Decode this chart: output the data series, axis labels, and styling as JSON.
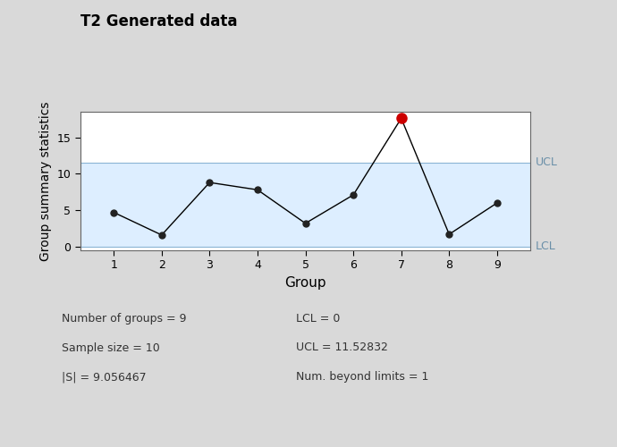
{
  "title": "T2 Generated data",
  "xlabel": "Group",
  "ylabel": "Group summary statistics",
  "groups": [
    1,
    2,
    3,
    4,
    5,
    6,
    7,
    8,
    9
  ],
  "values": [
    4.7,
    1.6,
    8.8,
    7.8,
    3.2,
    7.1,
    17.6,
    1.7,
    6.0
  ],
  "UCL": 11.52832,
  "LCL": 0,
  "beyond_index": 6,
  "normal_color": "#000000",
  "beyond_color": "#cc0000",
  "line_color": "#000000",
  "ucl_label": "UCL",
  "lcl_label": "LCL",
  "stats": [
    "Number of groups = 9",
    "Sample size = 10",
    "|S| = 9.056467"
  ],
  "stats2": [
    "LCL = 0",
    "UCL = 11.52832",
    "Num. beyond limits = 1"
  ],
  "background_color": "#d9d9d9",
  "plot_bg_color": "#ffffff",
  "shaded_region_color": "#ddeeff",
  "ylim": [
    -0.5,
    18.5
  ],
  "yticks": [
    0,
    5,
    10,
    15
  ],
  "title_fontsize": 12,
  "label_fontsize": 10,
  "tick_fontsize": 9,
  "stats_fontsize": 9
}
